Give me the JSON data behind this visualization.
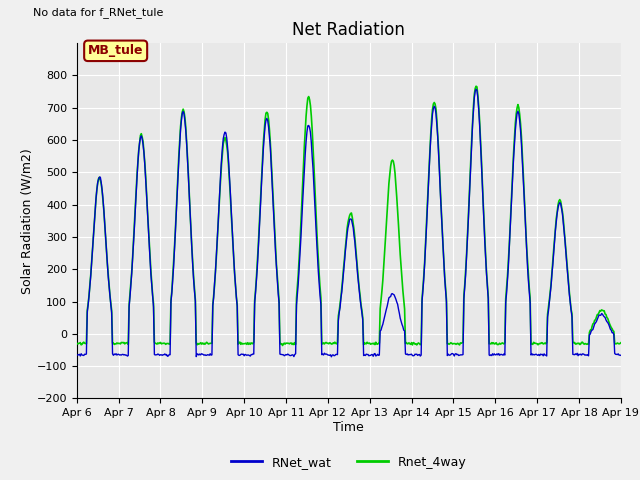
{
  "title": "Net Radiation",
  "xlabel": "Time",
  "ylabel": "Solar Radiation (W/m2)",
  "text_upper_left": "No data for f_RNet_tule",
  "annotation_box": "MB_tule",
  "ylim": [
    -200,
    900
  ],
  "yticks": [
    -200,
    -100,
    0,
    100,
    200,
    300,
    400,
    500,
    600,
    700,
    800
  ],
  "xtick_labels": [
    "Apr 6",
    "Apr 7",
    "Apr 8",
    "Apr 9",
    "Apr 10",
    "Apr 11",
    "Apr 12",
    "Apr 13",
    "Apr 14",
    "Apr 15",
    "Apr 16",
    "Apr 17",
    "Apr 18",
    "Apr 19"
  ],
  "color_RNet_wat": "#0000cc",
  "color_Rnet_4way": "#00cc00",
  "legend_labels": [
    "RNet_wat",
    "Rnet_4way"
  ],
  "fig_bg_color": "#f0f0f0",
  "plot_bg_color": "#e8e8e8",
  "title_fontsize": 12,
  "label_fontsize": 9,
  "tick_fontsize": 8,
  "annotation_box_color": "#ffff99",
  "annotation_box_edge": "#8b0000",
  "annotation_text_color": "#8b0000",
  "night_wat": -65,
  "night_4way": -30
}
